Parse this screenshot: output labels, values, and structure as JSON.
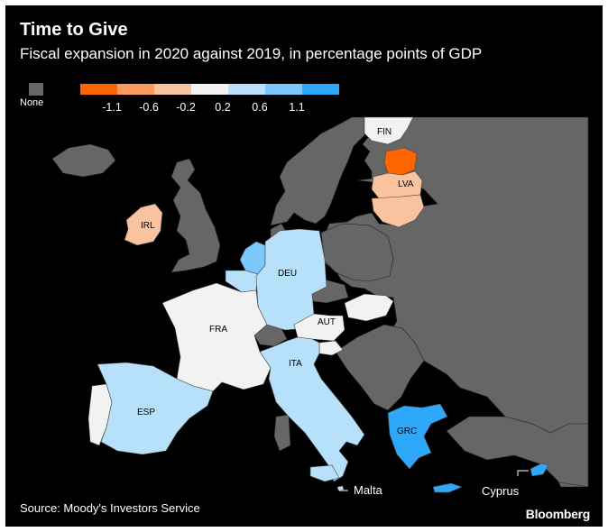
{
  "title": "Time to Give",
  "subtitle": "Fiscal expansion in 2020 against 2019, in percentage points of GDP",
  "legend": {
    "none_label": "None",
    "none_color": "#666666",
    "bins": [
      "#ff6600",
      "#fb9a5c",
      "#f9c3a0",
      "#f2f2f2",
      "#b7e0fb",
      "#7cc7fb",
      "#2ea8fa"
    ],
    "ticks": [
      "-1.1",
      "-0.6",
      "-0.2",
      "0.2",
      "0.6",
      "1.1"
    ]
  },
  "countries": [
    {
      "code": "FIN",
      "label": "FIN",
      "color": "#f2f2f2"
    },
    {
      "code": "EST",
      "label": "",
      "color": "#ff6600"
    },
    {
      "code": "LVA",
      "label": "LVA",
      "color": "#f9c3a0"
    },
    {
      "code": "LTU",
      "label": "",
      "color": "#f9c3a0"
    },
    {
      "code": "IRL",
      "label": "IRL",
      "color": "#f9c3a0"
    },
    {
      "code": "DEU",
      "label": "DEU",
      "color": "#b7e0fb"
    },
    {
      "code": "NLD",
      "label": "",
      "color": "#7cc7fb"
    },
    {
      "code": "BEL",
      "label": "",
      "color": "#b7e0fb"
    },
    {
      "code": "FRA",
      "label": "FRA",
      "color": "#f2f2f2"
    },
    {
      "code": "AUT",
      "label": "AUT",
      "color": "#f2f2f2"
    },
    {
      "code": "SVK",
      "label": "",
      "color": "#f2f2f2"
    },
    {
      "code": "SVN",
      "label": "",
      "color": "#f2f2f2"
    },
    {
      "code": "ITA",
      "label": "ITA",
      "color": "#b7e0fb"
    },
    {
      "code": "ESP",
      "label": "ESP",
      "color": "#b7e0fb"
    },
    {
      "code": "PRT",
      "label": "",
      "color": "#f2f2f2"
    },
    {
      "code": "GRC",
      "label": "GRC",
      "color": "#2ea8fa"
    },
    {
      "code": "CYP",
      "label": "",
      "color": "#2ea8fa"
    },
    {
      "code": "MLT",
      "label": "",
      "color": "#b7e0fb"
    }
  ],
  "islands": {
    "malta": "Malta",
    "cyprus": "Cyprus"
  },
  "source": "Source: Moody's Investors Service",
  "brand": "Bloomberg"
}
